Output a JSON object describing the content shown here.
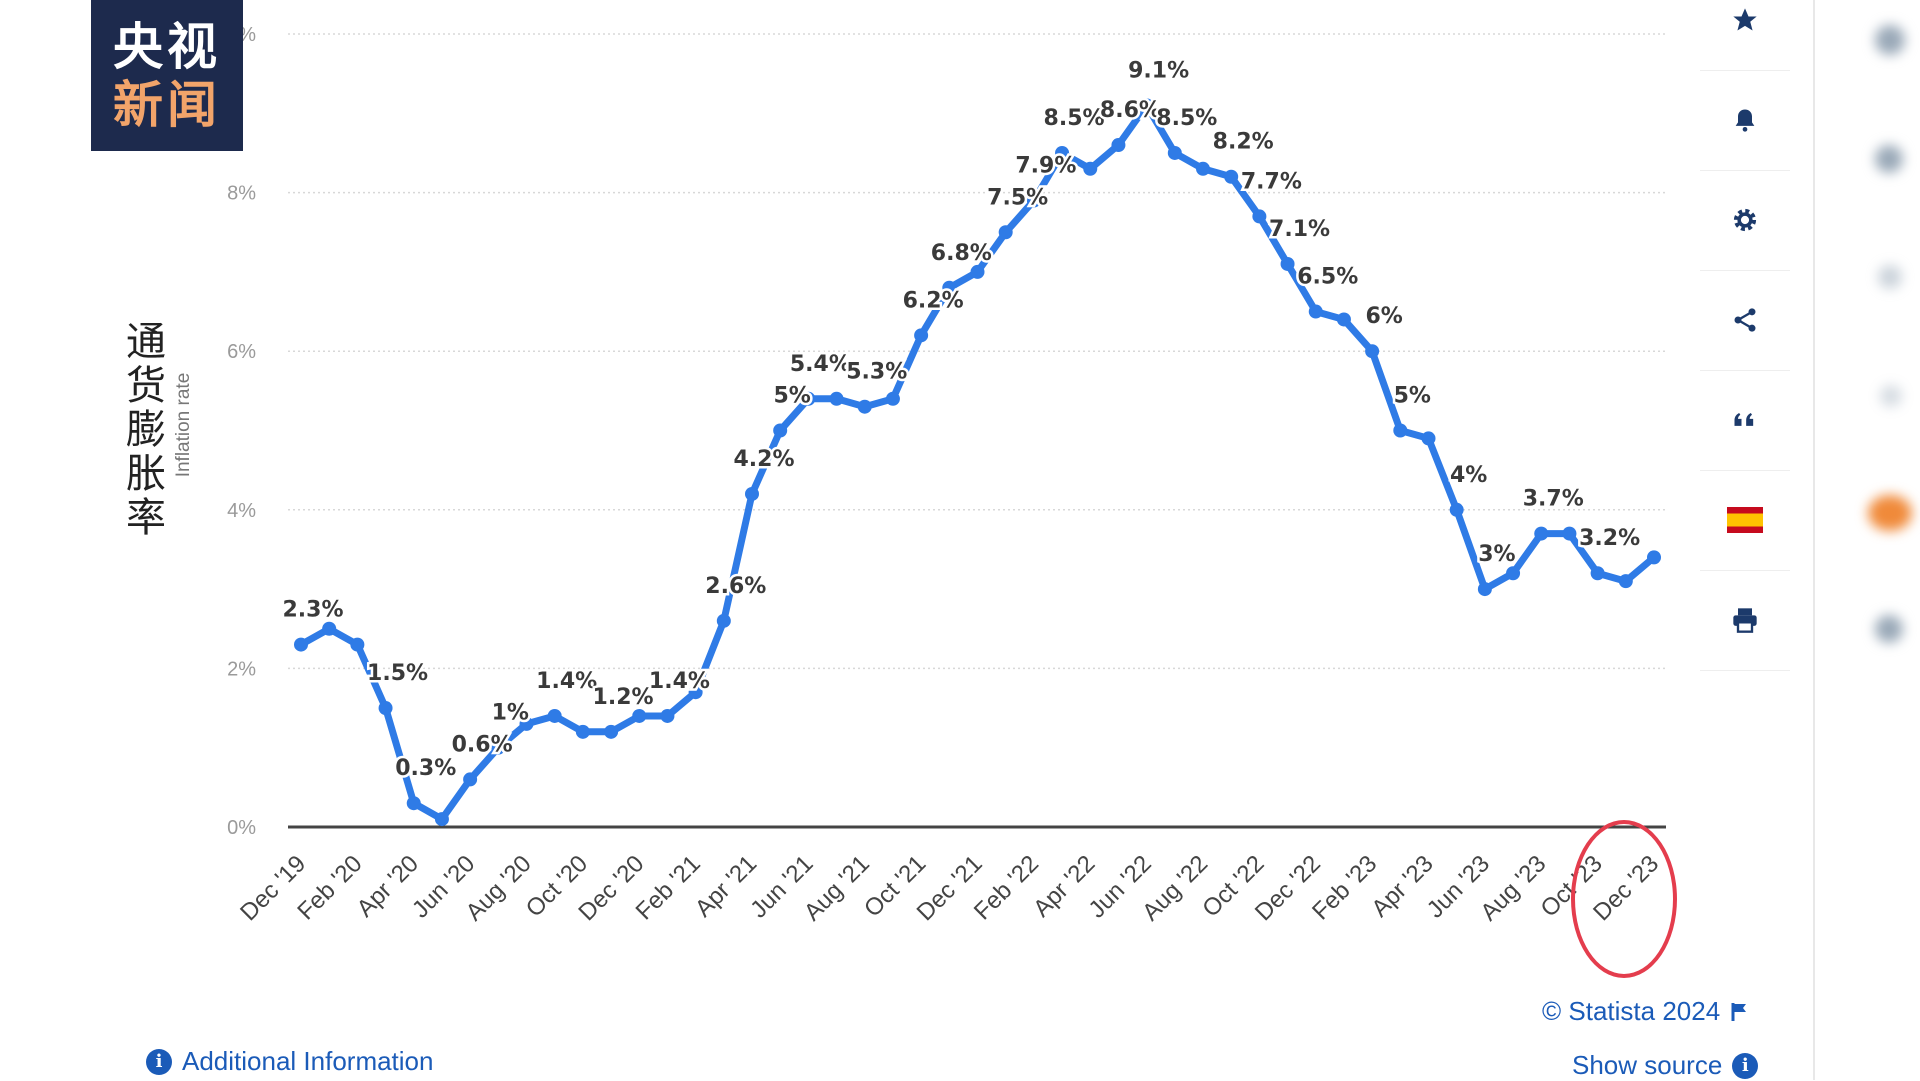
{
  "logo": {
    "line1": "央视",
    "line2": "新闻"
  },
  "y_axis_title_cn": "通货膨胀率",
  "y_axis_title_en": "Inflation rate",
  "sidebar_icons": [
    "star-icon",
    "bell-icon",
    "gear-icon",
    "share-icon",
    "quote-icon",
    "spain-flag-icon",
    "print-icon"
  ],
  "credit": {
    "text": "© Statista 2024"
  },
  "show_source": {
    "text": "Show source"
  },
  "additional_info": {
    "text": "Additional Information"
  },
  "colors": {
    "line": "#2f7be6",
    "grid": "#d8d8d8",
    "highlight": "#e43d4d",
    "link": "#1b5bb8"
  },
  "chart_data": {
    "type": "line",
    "title": "",
    "ylabel": "Inflation rate",
    "ylim": [
      0,
      10
    ],
    "y_ticks": [
      "0%",
      "2%",
      "4%",
      "6%",
      "8%",
      "%"
    ],
    "x_tick_labels": [
      "Dec '19",
      "Feb '20",
      "Apr '20",
      "Jun '20",
      "Aug '20",
      "Oct '20",
      "Dec '20",
      "Feb '21",
      "Apr '21",
      "Jun '21",
      "Aug '21",
      "Oct '21",
      "Dec '21",
      "Feb '22",
      "Apr '22",
      "Jun '22",
      "Aug '22",
      "Oct '22",
      "Dec '22",
      "Feb '23",
      "Apr '23",
      "Jun '23",
      "Aug '23",
      "Oct '23",
      "Dec '23"
    ],
    "series": [
      {
        "values": [
          2.3,
          2.5,
          2.3,
          1.5,
          0.3,
          0.1,
          0.6,
          1.0,
          1.3,
          1.4,
          1.2,
          1.2,
          1.4,
          1.4,
          1.7,
          2.6,
          4.2,
          5.0,
          5.4,
          5.4,
          5.3,
          5.4,
          6.2,
          6.8,
          7.0,
          7.5,
          7.9,
          8.5,
          8.3,
          8.6,
          9.1,
          8.5,
          8.3,
          8.2,
          7.7,
          7.1,
          6.5,
          6.4,
          6.0,
          5.0,
          4.9,
          4.0,
          3.0,
          3.2,
          3.7,
          3.7,
          3.2,
          3.1,
          3.4
        ]
      }
    ],
    "data_labels": [
      {
        "index": 0,
        "text": "2.3%"
      },
      {
        "index": 3,
        "text": "1.5%"
      },
      {
        "index": 4,
        "text": "0.3%"
      },
      {
        "index": 6,
        "text": "0.6%"
      },
      {
        "index": 7,
        "text": "1%"
      },
      {
        "index": 9,
        "text": "1.4%"
      },
      {
        "index": 11,
        "text": "1.2%"
      },
      {
        "index": 13,
        "text": "1.4%"
      },
      {
        "index": 15,
        "text": "2.6%"
      },
      {
        "index": 16,
        "text": "4.2%"
      },
      {
        "index": 17,
        "text": "5%"
      },
      {
        "index": 18,
        "text": "5.4%"
      },
      {
        "index": 20,
        "text": "5.3%"
      },
      {
        "index": 22,
        "text": "6.2%"
      },
      {
        "index": 23,
        "text": "6.8%"
      },
      {
        "index": 25,
        "text": "7.5%"
      },
      {
        "index": 26,
        "text": "7.9%"
      },
      {
        "index": 27,
        "text": "8.5%"
      },
      {
        "index": 29,
        "text": "8.6%"
      },
      {
        "index": 30,
        "text": "9.1%"
      },
      {
        "index": 31,
        "text": "8.5%"
      },
      {
        "index": 33,
        "text": "8.2%"
      },
      {
        "index": 34,
        "text": "7.7%"
      },
      {
        "index": 35,
        "text": "7.1%"
      },
      {
        "index": 36,
        "text": "6.5%"
      },
      {
        "index": 38,
        "text": "6%"
      },
      {
        "index": 39,
        "text": "5%"
      },
      {
        "index": 41,
        "text": "4%"
      },
      {
        "index": 42,
        "text": "3%"
      },
      {
        "index": 44,
        "text": "3.7%"
      },
      {
        "index": 46,
        "text": "3.2%"
      }
    ],
    "highlighted_tick": "Dec '23",
    "grid": true,
    "legend": false
  }
}
